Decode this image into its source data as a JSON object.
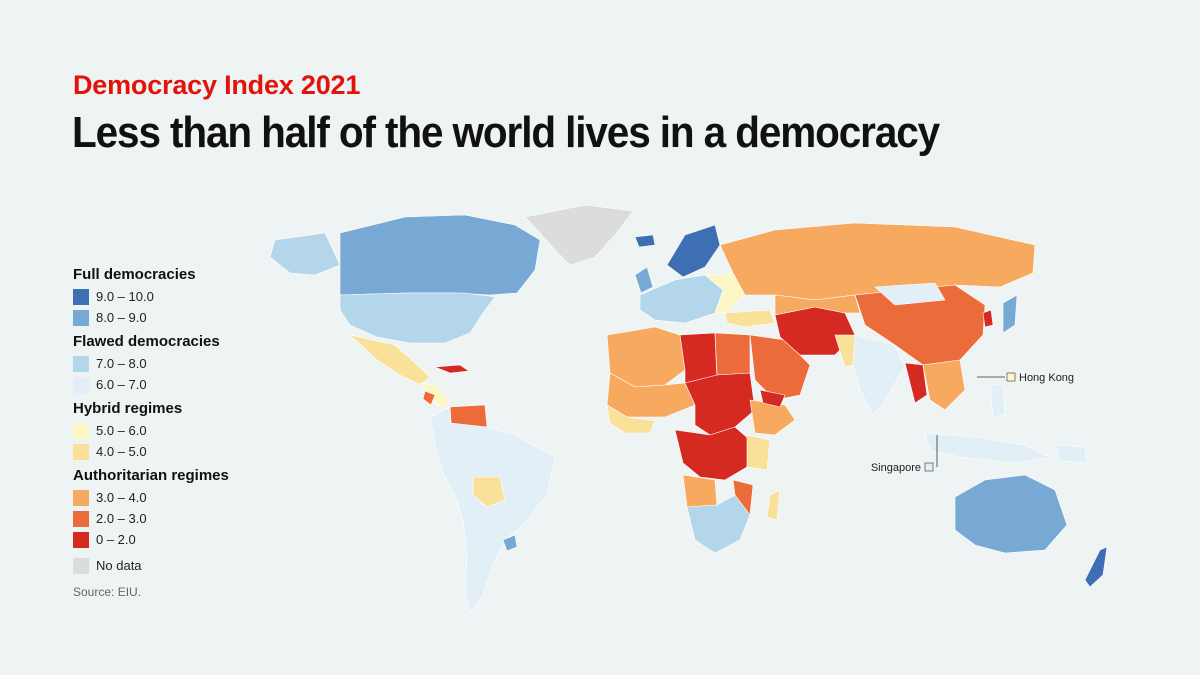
{
  "kicker": "Democracy Index 2021",
  "headline": "Less than half of the world lives in a democracy",
  "legend": {
    "groups": [
      {
        "title": "Full democracies",
        "items": [
          {
            "label": "9.0 – 10.0",
            "color": "#3e6fb5"
          },
          {
            "label": "8.0 – 9.0",
            "color": "#78a9d4"
          }
        ]
      },
      {
        "title": "Flawed democracies",
        "items": [
          {
            "label": "7.0 – 8.0",
            "color": "#b3d6ea"
          },
          {
            "label": "6.0 – 7.0",
            "color": "#e2eff6"
          }
        ]
      },
      {
        "title": "Hybrid regimes",
        "items": [
          {
            "label": "5.0 – 6.0",
            "color": "#fbf7c6"
          },
          {
            "label": "4.0 – 5.0",
            "color": "#fae19a"
          }
        ]
      },
      {
        "title": "Authoritarian regimes",
        "items": [
          {
            "label": "3.0 – 4.0",
            "color": "#f7aa5f"
          },
          {
            "label": "2.0 – 3.0",
            "color": "#ec6b3b"
          },
          {
            "label": "0 – 2.0",
            "color": "#d42a22"
          }
        ]
      }
    ],
    "nodata": {
      "label": "No data",
      "color": "#dcdcdc"
    }
  },
  "source": "Source: EIU.",
  "map_labels": {
    "hong_kong": "Hong Kong",
    "singapore": "Singapore"
  }
}
